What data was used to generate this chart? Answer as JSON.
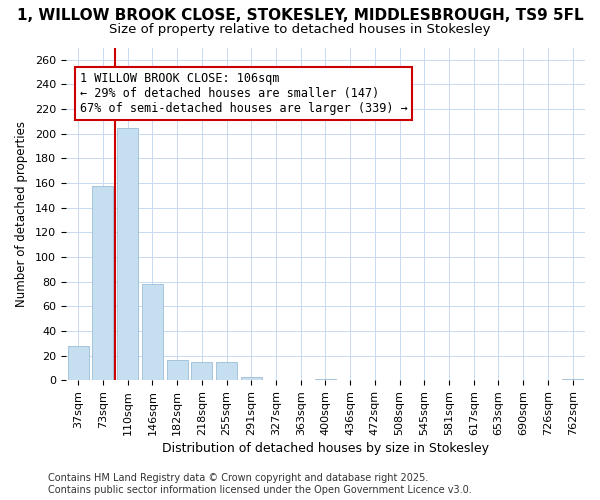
{
  "title": "1, WILLOW BROOK CLOSE, STOKESLEY, MIDDLESBROUGH, TS9 5FL",
  "subtitle": "Size of property relative to detached houses in Stokesley",
  "xlabel": "Distribution of detached houses by size in Stokesley",
  "ylabel": "Number of detached properties",
  "categories": [
    "37sqm",
    "73sqm",
    "110sqm",
    "146sqm",
    "182sqm",
    "218sqm",
    "255sqm",
    "291sqm",
    "327sqm",
    "363sqm",
    "400sqm",
    "436sqm",
    "472sqm",
    "508sqm",
    "545sqm",
    "581sqm",
    "617sqm",
    "653sqm",
    "690sqm",
    "726sqm",
    "762sqm"
  ],
  "values": [
    28,
    158,
    205,
    78,
    16,
    15,
    15,
    3,
    0,
    0,
    1,
    0,
    0,
    0,
    0,
    0,
    0,
    0,
    0,
    0,
    1
  ],
  "bar_color": "#c5dff0",
  "bar_edge_color": "#9bbdd6",
  "grid_color": "#c8daf0",
  "vline_color": "#cc0000",
  "vline_x_index": 2,
  "annotation_text": "1 WILLOW BROOK CLOSE: 106sqm\n← 29% of detached houses are smaller (147)\n67% of semi-detached houses are larger (339) →",
  "ylim": [
    0,
    270
  ],
  "yticks": [
    0,
    20,
    40,
    60,
    80,
    100,
    120,
    140,
    160,
    180,
    200,
    220,
    240,
    260
  ],
  "background_color": "#ffffff",
  "footer_line1": "Contains HM Land Registry data © Crown copyright and database right 2025.",
  "footer_line2": "Contains public sector information licensed under the Open Government Licence v3.0.",
  "title_fontsize": 11,
  "subtitle_fontsize": 9.5,
  "xlabel_fontsize": 9,
  "ylabel_fontsize": 8.5,
  "tick_fontsize": 8,
  "annotation_fontsize": 8.5,
  "footer_fontsize": 7
}
